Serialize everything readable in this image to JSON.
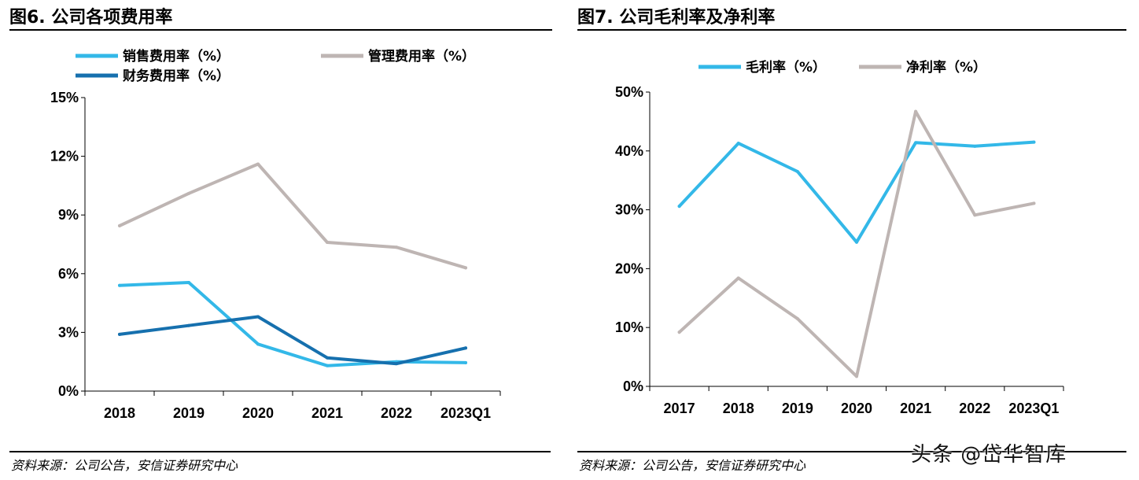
{
  "left_panel": {
    "title": "图6. 公司各项费用率",
    "source": "资料来源：公司公告，安信证券研究中心"
  },
  "right_panel": {
    "title": "图7. 公司毛利率及净利率",
    "source": "资料来源：公司公告，安信证券研究中心"
  },
  "watermark": "头条 @岱华智库",
  "colors": {
    "light_blue": "#33B8E8",
    "gray": "#BEB5B3",
    "dark_blue": "#1670AE",
    "axis": "#000000"
  },
  "chart_data": [
    {
      "type": "line",
      "title": "",
      "xlabel": "",
      "ylabel": "",
      "categories": [
        "2018",
        "2019",
        "2020",
        "2021",
        "2022",
        "2023Q1"
      ],
      "ylim": [
        0,
        15
      ],
      "yticks": [
        0,
        3,
        6,
        9,
        12,
        15
      ],
      "ytick_labels": [
        "0%",
        "3%",
        "6%",
        "9%",
        "12%",
        "15%"
      ],
      "grid": false,
      "legend_position": "top",
      "series": [
        {
          "name": "销售费用率（%）",
          "color": "#33B8E8",
          "values": [
            5.4,
            5.55,
            2.4,
            1.3,
            1.5,
            1.45
          ]
        },
        {
          "name": "管理费用率（%）",
          "color": "#BEB5B3",
          "values": [
            8.45,
            10.1,
            11.6,
            7.6,
            7.35,
            6.3
          ]
        },
        {
          "name": "财务费用率（%）",
          "color": "#1670AE",
          "values": [
            2.9,
            3.35,
            3.8,
            1.7,
            1.4,
            2.2
          ]
        }
      ]
    },
    {
      "type": "line",
      "title": "",
      "xlabel": "",
      "ylabel": "",
      "categories": [
        "2017",
        "2018",
        "2019",
        "2020",
        "2021",
        "2022",
        "2023Q1"
      ],
      "ylim": [
        0,
        50
      ],
      "yticks": [
        0,
        10,
        20,
        30,
        40,
        50
      ],
      "ytick_labels": [
        "0%",
        "10%",
        "20%",
        "30%",
        "40%",
        "50%"
      ],
      "grid": false,
      "legend_position": "top",
      "series": [
        {
          "name": "毛利率（%）",
          "color": "#33B8E8",
          "values": [
            30.6,
            41.3,
            36.5,
            24.5,
            41.4,
            40.8,
            41.5
          ]
        },
        {
          "name": "净利率（%）",
          "color": "#BEB5B3",
          "values": [
            9.2,
            18.4,
            11.5,
            1.7,
            46.7,
            29.1,
            31.1
          ]
        }
      ]
    }
  ]
}
